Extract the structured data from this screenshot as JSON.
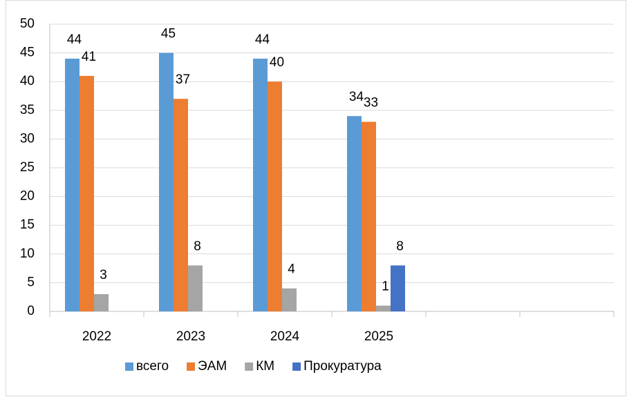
{
  "chart_data": {
    "type": "bar",
    "categories": [
      "2022",
      "2023",
      "2024",
      "2025",
      null,
      null
    ],
    "series": [
      {
        "name": "всего",
        "color": "#5b9bd5",
        "values": [
          44,
          45,
          44,
          34,
          null,
          null
        ]
      },
      {
        "name": "ЭАМ",
        "color": "#ed7d31",
        "values": [
          41,
          37,
          40,
          33,
          null,
          null
        ]
      },
      {
        "name": "КМ",
        "color": "#a5a5a5",
        "values": [
          3,
          8,
          4,
          1,
          null,
          null
        ]
      },
      {
        "name": "Прокуратура",
        "color": "#4472c4",
        "values": [
          null,
          null,
          null,
          8,
          null,
          null
        ]
      }
    ],
    "ylim": [
      0,
      50
    ],
    "yticks": [
      0,
      5,
      10,
      15,
      20,
      25,
      30,
      35,
      40,
      45,
      50
    ],
    "grid": true,
    "legend": "bottom"
  }
}
